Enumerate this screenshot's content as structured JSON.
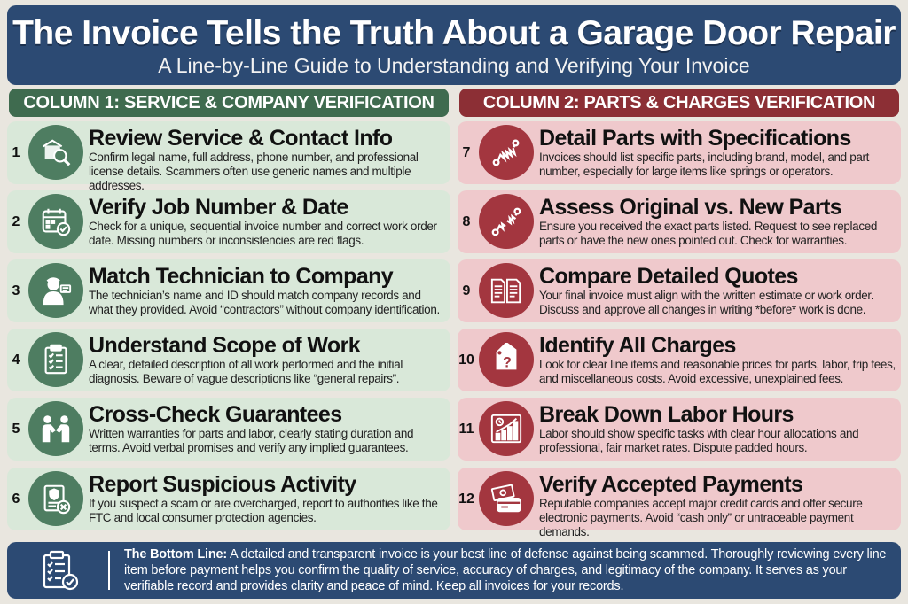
{
  "header": {
    "title": "The Invoice Tells the Truth About a Garage Door Repair",
    "subtitle": "A Line-by-Line Guide to Understanding and Verifying Your Invoice"
  },
  "columns": {
    "left": {
      "title": "COLUMN 1: SERVICE & COMPANY VERIFICATION",
      "color": "#3f6b4f"
    },
    "right": {
      "title": "COLUMN 2: PARTS & CHARGES VERIFICATION",
      "color": "#8c2f35"
    }
  },
  "items": [
    {
      "num": "1",
      "icon": "building-magnifier-icon",
      "title": "Review Service & Contact Info",
      "desc": "Confirm legal name, full address, phone number, and professional license details. Scammers often use generic names and multiple addresses."
    },
    {
      "num": "2",
      "icon": "calendar-check-icon",
      "title": "Verify Job Number & Date",
      "desc": "Check for a unique, sequential invoice number and correct work order date. Missing numbers or inconsistencies are red flags."
    },
    {
      "num": "3",
      "icon": "technician-id-icon",
      "title": "Match Technician to Company",
      "desc": "The technician’s name and ID should match company records and what they provided. Avoid “contractors” without company identification."
    },
    {
      "num": "4",
      "icon": "clipboard-checklist-icon",
      "title": "Understand Scope of Work",
      "desc": "A clear, detailed description of all work performed and the initial diagnosis. Beware of vague descriptions like “general repairs”."
    },
    {
      "num": "5",
      "icon": "handshake-icon",
      "title": "Cross-Check Guarantees",
      "desc": "Written warranties for parts and labor, clearly stating duration and terms. Avoid verbal promises and verify any implied guarantees."
    },
    {
      "num": "6",
      "icon": "report-badge-icon",
      "title": "Report Suspicious Activity",
      "desc": "If you suspect a scam or are overcharged, report to authorities like the FTC and local consumer protection agencies."
    },
    {
      "num": "7",
      "icon": "spring-icon",
      "title": "Detail Parts with Specifications",
      "desc": "Invoices should list specific parts, including brand, model, and part number, especially for large items like springs or operators."
    },
    {
      "num": "8",
      "icon": "broken-spring-icon",
      "title": "Assess Original vs. New Parts",
      "desc": "Ensure you received the exact parts listed. Request to see replaced parts or have the new ones pointed out. Check for warranties."
    },
    {
      "num": "9",
      "icon": "documents-compare-icon",
      "title": "Compare Detailed Quotes",
      "desc": "Your final invoice must align with the written estimate or work order. Discuss and approve all changes in writing *before* work is done."
    },
    {
      "num": "10",
      "icon": "price-tag-question-icon",
      "title": "Identify All Charges",
      "desc": "Look for clear line items and reasonable prices for parts, labor, trip fees, and miscellaneous costs. Avoid excessive, unexplained fees."
    },
    {
      "num": "11",
      "icon": "bar-chart-clock-icon",
      "title": "Break Down Labor Hours",
      "desc": "Labor should show specific tasks with clear hour allocations and professional, fair market rates. Dispute padded hours."
    },
    {
      "num": "12",
      "icon": "cash-card-icon",
      "title": "Verify Accepted Payments",
      "desc": "Reputable companies accept major credit cards and offer secure electronic payments. Avoid “cash only” or untraceable payment demands."
    }
  ],
  "footer": {
    "icon": "clipboard-check-icon",
    "label": "The Bottom Line:",
    "text": " A detailed and transparent invoice is your best line of defense against being scammed. Thoroughly reviewing every line item before payment helps you confirm the quality of service, accuracy of charges, and legitimacy of the company. It serves as your verifiable record and provides clarity and peace of mind. Keep all invoices for your records."
  }
}
